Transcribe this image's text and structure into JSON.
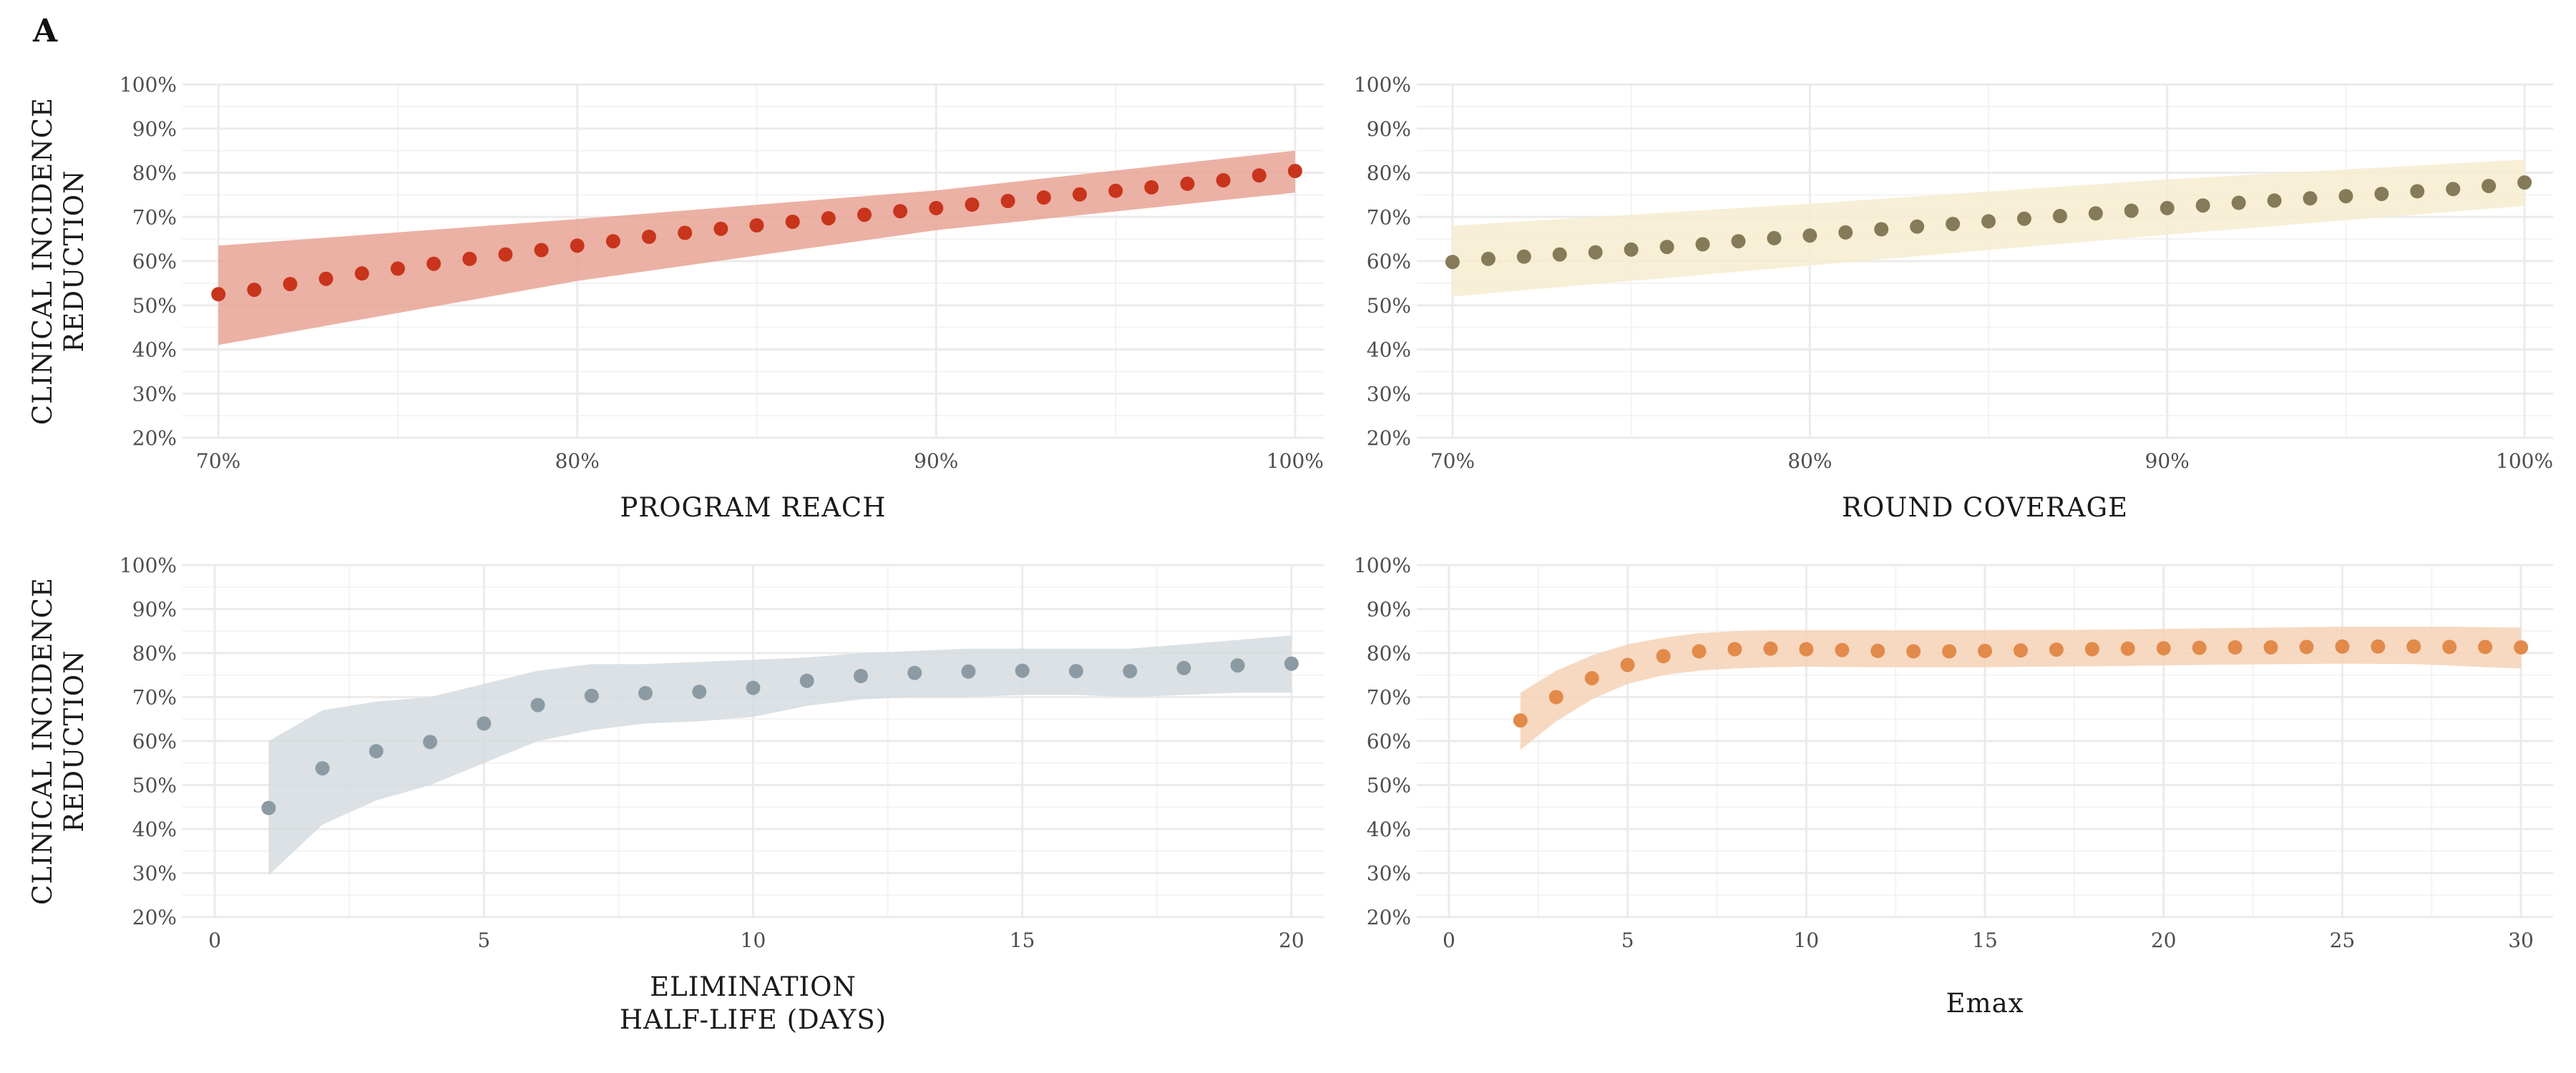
{
  "panel_label": "A",
  "chart_data": [
    {
      "type": "scatter",
      "xlabel": "PROGRAM  REACH",
      "ylabel": [
        "CLINICAL  INCIDENCE",
        "REDUCTION"
      ],
      "x_ticks": [
        "70%",
        "80%",
        "90%",
        "100%"
      ],
      "y_ticks": [
        "20%",
        "30%",
        "40%",
        "50%",
        "60%",
        "70%",
        "80%",
        "90%",
        "100%"
      ],
      "xlim": [
        0.69,
        1.008
      ],
      "ylim": [
        0.2,
        1.0
      ],
      "x_tick_values": [
        0.7,
        0.8,
        0.9,
        1.0
      ],
      "y_tick_values": [
        0.2,
        0.3,
        0.4,
        0.5,
        0.6,
        0.7,
        0.8,
        0.9,
        1.0
      ],
      "x_minor": [
        0.75,
        0.85,
        0.95
      ],
      "point_color": "#C8341C",
      "band_color": "#E8A394",
      "x": [
        0.7,
        0.71,
        0.72,
        0.73,
        0.74,
        0.75,
        0.76,
        0.77,
        0.78,
        0.79,
        0.8,
        0.81,
        0.82,
        0.83,
        0.84,
        0.85,
        0.86,
        0.87,
        0.88,
        0.89,
        0.9,
        0.91,
        0.92,
        0.93,
        0.94,
        0.95,
        0.96,
        0.97,
        0.98,
        0.99,
        1.0
      ],
      "y": [
        0.525,
        0.535,
        0.548,
        0.56,
        0.572,
        0.583,
        0.594,
        0.605,
        0.615,
        0.625,
        0.635,
        0.645,
        0.655,
        0.664,
        0.673,
        0.681,
        0.689,
        0.697,
        0.705,
        0.713,
        0.72,
        0.728,
        0.736,
        0.744,
        0.751,
        0.759,
        0.767,
        0.775,
        0.783,
        0.794,
        0.804
      ],
      "band_x": [
        0.7,
        0.8,
        0.9,
        1.0
      ],
      "band_lower": [
        0.41,
        0.555,
        0.67,
        0.755
      ],
      "band_upper": [
        0.635,
        0.695,
        0.76,
        0.85
      ]
    },
    {
      "type": "scatter",
      "xlabel": "ROUND  COVERAGE",
      "x_ticks": [
        "70%",
        "80%",
        "90%",
        "100%"
      ],
      "y_ticks": [
        "20%",
        "30%",
        "40%",
        "50%",
        "60%",
        "70%",
        "80%",
        "90%",
        "100%"
      ],
      "xlim": [
        0.69,
        1.008
      ],
      "ylim": [
        0.2,
        1.0
      ],
      "x_tick_values": [
        0.7,
        0.8,
        0.9,
        1.0
      ],
      "y_tick_values": [
        0.2,
        0.3,
        0.4,
        0.5,
        0.6,
        0.7,
        0.8,
        0.9,
        1.0
      ],
      "x_minor": [
        0.75,
        0.85,
        0.95
      ],
      "point_color": "#857B58",
      "band_color": "#F6ECCF",
      "x": [
        0.7,
        0.71,
        0.72,
        0.73,
        0.74,
        0.75,
        0.76,
        0.77,
        0.78,
        0.79,
        0.8,
        0.81,
        0.82,
        0.83,
        0.84,
        0.85,
        0.86,
        0.87,
        0.88,
        0.89,
        0.9,
        0.91,
        0.92,
        0.93,
        0.94,
        0.95,
        0.96,
        0.97,
        0.98,
        0.99,
        1.0
      ],
      "y": [
        0.598,
        0.605,
        0.61,
        0.615,
        0.62,
        0.626,
        0.632,
        0.638,
        0.645,
        0.652,
        0.658,
        0.665,
        0.672,
        0.678,
        0.684,
        0.69,
        0.696,
        0.702,
        0.708,
        0.714,
        0.72,
        0.726,
        0.732,
        0.737,
        0.742,
        0.747,
        0.752,
        0.758,
        0.763,
        0.77,
        0.778
      ],
      "band_x": [
        0.7,
        0.8,
        0.9,
        1.0
      ],
      "band_lower": [
        0.52,
        0.59,
        0.66,
        0.725
      ],
      "band_upper": [
        0.68,
        0.73,
        0.785,
        0.83
      ]
    },
    {
      "type": "scatter",
      "xlabel": [
        "ELIMINATION",
        "HALF-LIFE  (DAYS)"
      ],
      "ylabel": [
        "CLINICAL  INCIDENCE",
        "REDUCTION"
      ],
      "x_ticks": [
        "0",
        "5",
        "10",
        "15",
        "20"
      ],
      "y_ticks": [
        "20%",
        "30%",
        "40%",
        "50%",
        "60%",
        "70%",
        "80%",
        "90%",
        "100%"
      ],
      "xlim": [
        -0.6,
        20.6
      ],
      "ylim": [
        0.2,
        1.0
      ],
      "x_tick_values": [
        0,
        5,
        10,
        15,
        20
      ],
      "y_tick_values": [
        0.2,
        0.3,
        0.4,
        0.5,
        0.6,
        0.7,
        0.8,
        0.9,
        1.0
      ],
      "x_minor": [
        2.5,
        7.5,
        12.5,
        17.5
      ],
      "point_color": "#8C9BA3",
      "band_color": "#D5DCDF",
      "x": [
        1,
        2,
        3,
        4,
        5,
        6,
        7,
        8,
        9,
        10,
        11,
        12,
        13,
        14,
        15,
        16,
        17,
        18,
        19,
        20
      ],
      "y": [
        0.448,
        0.538,
        0.577,
        0.598,
        0.64,
        0.682,
        0.703,
        0.709,
        0.712,
        0.721,
        0.737,
        0.748,
        0.755,
        0.758,
        0.76,
        0.759,
        0.759,
        0.766,
        0.772,
        0.776
      ],
      "band_x": [
        1,
        2,
        3,
        4,
        5,
        6,
        7,
        8,
        9,
        10,
        11,
        12,
        13,
        14,
        15,
        16,
        17,
        18,
        19,
        20
      ],
      "band_lower": [
        0.295,
        0.41,
        0.465,
        0.5,
        0.55,
        0.6,
        0.625,
        0.64,
        0.645,
        0.655,
        0.68,
        0.695,
        0.7,
        0.7,
        0.705,
        0.705,
        0.7,
        0.705,
        0.71,
        0.71
      ],
      "band_upper": [
        0.6,
        0.67,
        0.69,
        0.7,
        0.73,
        0.76,
        0.775,
        0.775,
        0.78,
        0.785,
        0.79,
        0.8,
        0.805,
        0.81,
        0.81,
        0.81,
        0.81,
        0.82,
        0.83,
        0.84
      ]
    },
    {
      "type": "scatter",
      "xlabel": "Emax",
      "x_ticks": [
        "0",
        "5",
        "10",
        "15",
        "20",
        "25",
        "30"
      ],
      "y_ticks": [
        "20%",
        "30%",
        "40%",
        "50%",
        "60%",
        "70%",
        "80%",
        "90%",
        "100%"
      ],
      "xlim": [
        -0.9,
        30.9
      ],
      "ylim": [
        0.2,
        1.0
      ],
      "x_tick_values": [
        0,
        5,
        10,
        15,
        20,
        25,
        30
      ],
      "y_tick_values": [
        0.2,
        0.3,
        0.4,
        0.5,
        0.6,
        0.7,
        0.8,
        0.9,
        1.0
      ],
      "x_minor": [
        2.5,
        7.5,
        12.5,
        17.5,
        22.5,
        27.5
      ],
      "point_color": "#E28A4A",
      "band_color": "#F6D2B6",
      "x": [
        2,
        3,
        4,
        5,
        6,
        7,
        8,
        9,
        10,
        11,
        12,
        13,
        14,
        15,
        16,
        17,
        18,
        19,
        20,
        21,
        22,
        23,
        24,
        25,
        26,
        27,
        28,
        29,
        30
      ],
      "y": [
        0.647,
        0.7,
        0.743,
        0.773,
        0.793,
        0.804,
        0.809,
        0.81,
        0.809,
        0.807,
        0.805,
        0.804,
        0.804,
        0.805,
        0.806,
        0.808,
        0.809,
        0.81,
        0.811,
        0.812,
        0.813,
        0.813,
        0.814,
        0.815,
        0.815,
        0.815,
        0.814,
        0.814,
        0.813
      ],
      "band_x": [
        2,
        3,
        4,
        5,
        6,
        7,
        8,
        9,
        10,
        12,
        15,
        18,
        20,
        22,
        25,
        27,
        28,
        29,
        30
      ],
      "band_lower": [
        0.58,
        0.645,
        0.695,
        0.73,
        0.75,
        0.76,
        0.765,
        0.768,
        0.769,
        0.768,
        0.768,
        0.77,
        0.772,
        0.774,
        0.776,
        0.775,
        0.772,
        0.768,
        0.765
      ],
      "band_upper": [
        0.71,
        0.76,
        0.795,
        0.82,
        0.835,
        0.845,
        0.85,
        0.852,
        0.852,
        0.852,
        0.852,
        0.853,
        0.855,
        0.857,
        0.86,
        0.86,
        0.86,
        0.859,
        0.858
      ]
    }
  ]
}
